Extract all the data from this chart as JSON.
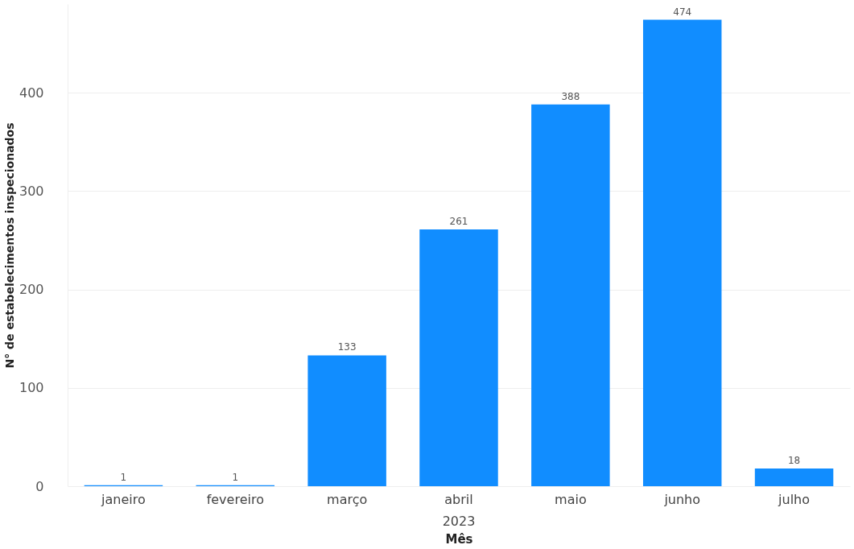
{
  "chart_data": {
    "type": "bar",
    "xlabel": "Mês",
    "ylabel": "N° de estabelecimentos inspecionados",
    "categories": [
      "janeiro",
      "fevereiro",
      "março",
      "abril",
      "maio",
      "junho",
      "julho"
    ],
    "values": [
      1,
      1,
      133,
      261,
      388,
      474,
      18
    ],
    "color": "#118dff",
    "ylim": [
      0,
      490
    ],
    "yticks": [
      0,
      100,
      200,
      300,
      400
    ],
    "grid": "y",
    "data_labels": true,
    "annotations": [
      "2023"
    ]
  }
}
